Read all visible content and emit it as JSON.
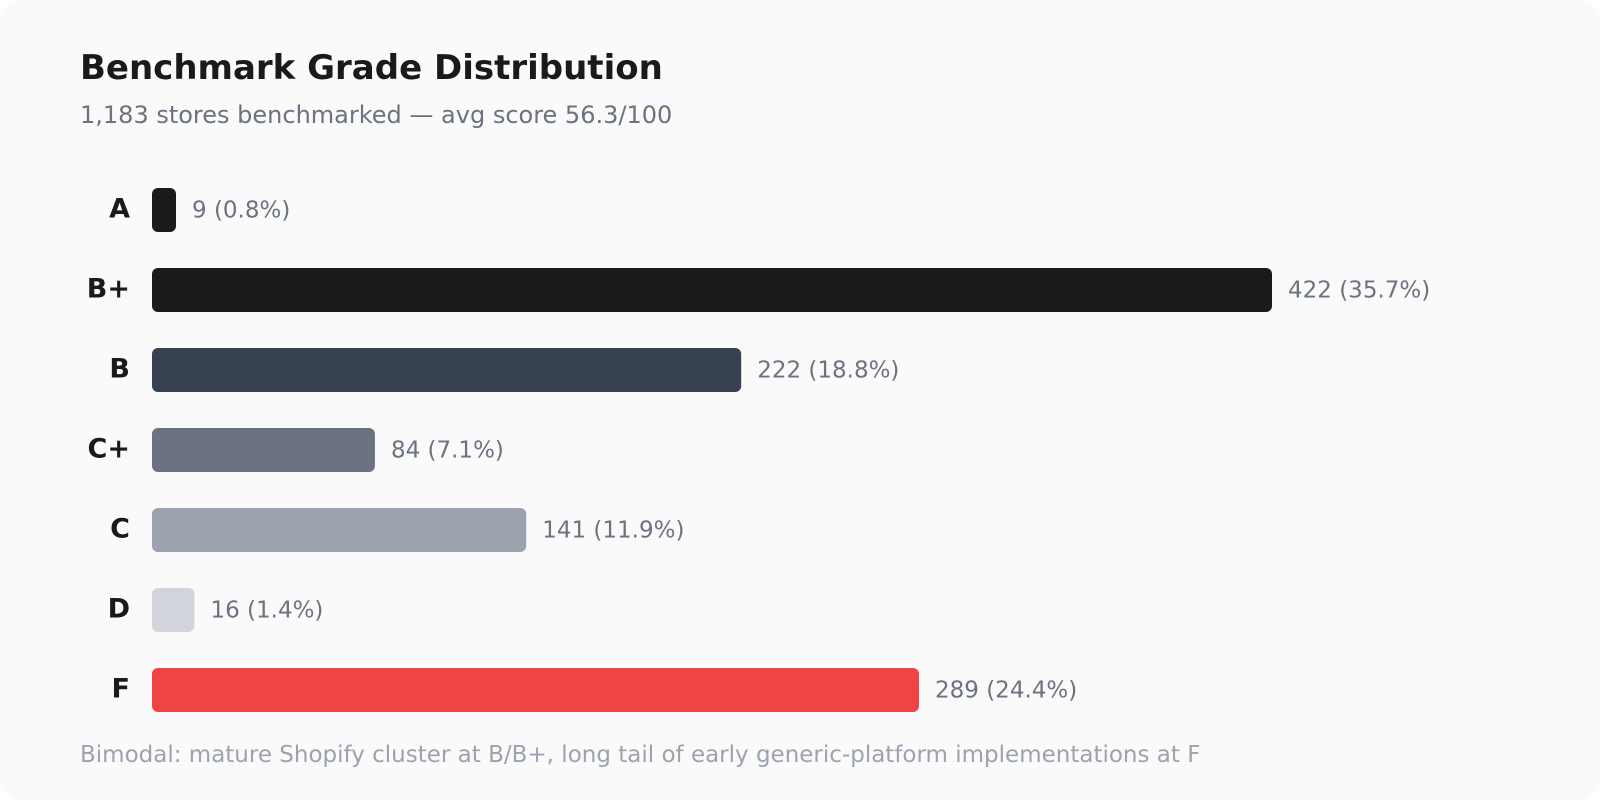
{
  "header": {
    "title": "Benchmark Grade Distribution",
    "subtitle": "1,183 stores benchmarked — avg score 56.3/100"
  },
  "footnote": "Bimodal: mature Shopify cluster at B/B+, long tail of early generic-platform implementations at F",
  "chart_data": {
    "type": "bar",
    "orientation": "horizontal",
    "title": "Benchmark Grade Distribution",
    "subtitle": "1,183 stores benchmarked — avg score 56.3/100",
    "categories": [
      "A",
      "B+",
      "B",
      "C+",
      "C",
      "D",
      "F"
    ],
    "values": [
      9,
      422,
      222,
      84,
      141,
      16,
      289
    ],
    "value_labels": [
      "9 (0.8%)",
      "422 (35.7%)",
      "222 (18.8%)",
      "84 (7.1%)",
      "141 (11.9%)",
      "16 (1.4%)",
      "289 (24.4%)"
    ],
    "colors": [
      "#1a1a1a",
      "#1a1a1a",
      "#374151",
      "#6b7280",
      "#9ca3af",
      "#d1d5db",
      "#ef4444"
    ],
    "xlim": [
      0,
      422
    ],
    "grid": false,
    "legend": "none"
  }
}
